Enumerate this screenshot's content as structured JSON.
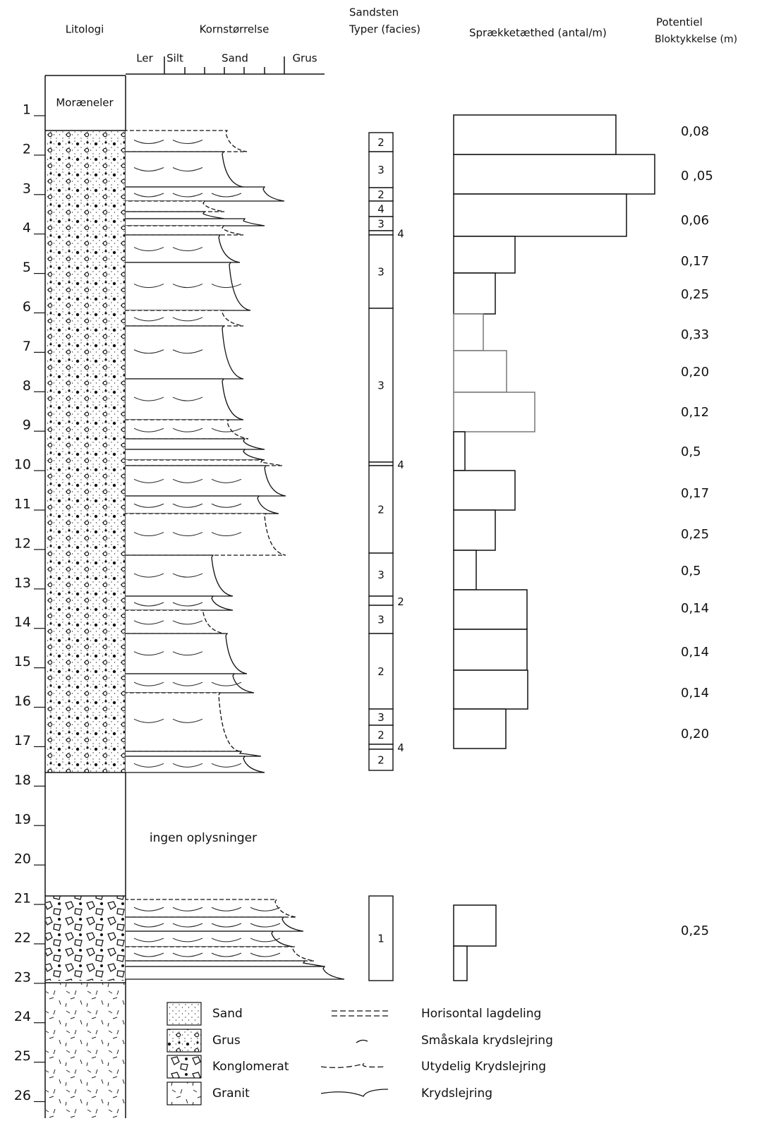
{
  "headers": {
    "litologi": "Litologi",
    "kornstorrelse": "Kornstørrelse",
    "sandsten": [
      "Sandsten",
      "Typer (facies)"
    ],
    "spraekke": "Sprækketæthed (antal/m)",
    "bloktykkelse": [
      "Potentiel",
      "Bloktykkelse (m)"
    ]
  },
  "grain_scale": [
    "Ler",
    "Silt",
    "Sand",
    "Grus"
  ],
  "depths": [
    1,
    2,
    3,
    4,
    5,
    6,
    7,
    8,
    9,
    10,
    11,
    12,
    13,
    14,
    15,
    16,
    17,
    18,
    19,
    20,
    21,
    22,
    23,
    24,
    25,
    26
  ],
  "lithology_labels": {
    "moraeneler": "Moræneler",
    "no_data": "ingen oplysninger"
  },
  "facies": [
    "2",
    "3",
    "2",
    "4",
    "3",
    "4",
    "3",
    "3",
    "4",
    "2",
    "3",
    "2",
    "3",
    "2",
    "3",
    "2",
    "4",
    "2",
    "1"
  ],
  "block_thickness": [
    "0,08",
    "0 ,05",
    "0,06",
    "0,17",
    "0,25",
    "0,33",
    "0,20",
    "0,12",
    "0,5",
    "0,17",
    "0,25",
    "0,5",
    "0,14",
    "0,14",
    "0,14",
    "0,20",
    "0,25"
  ],
  "legend": {
    "lithology": [
      "Sand",
      "Grus",
      "Konglomerat",
      "Granit"
    ],
    "structures": [
      "Horisontal lagdeling",
      "Småskala krydslejring",
      "Utydelig Krydslejring",
      "Krydslejring"
    ]
  }
}
